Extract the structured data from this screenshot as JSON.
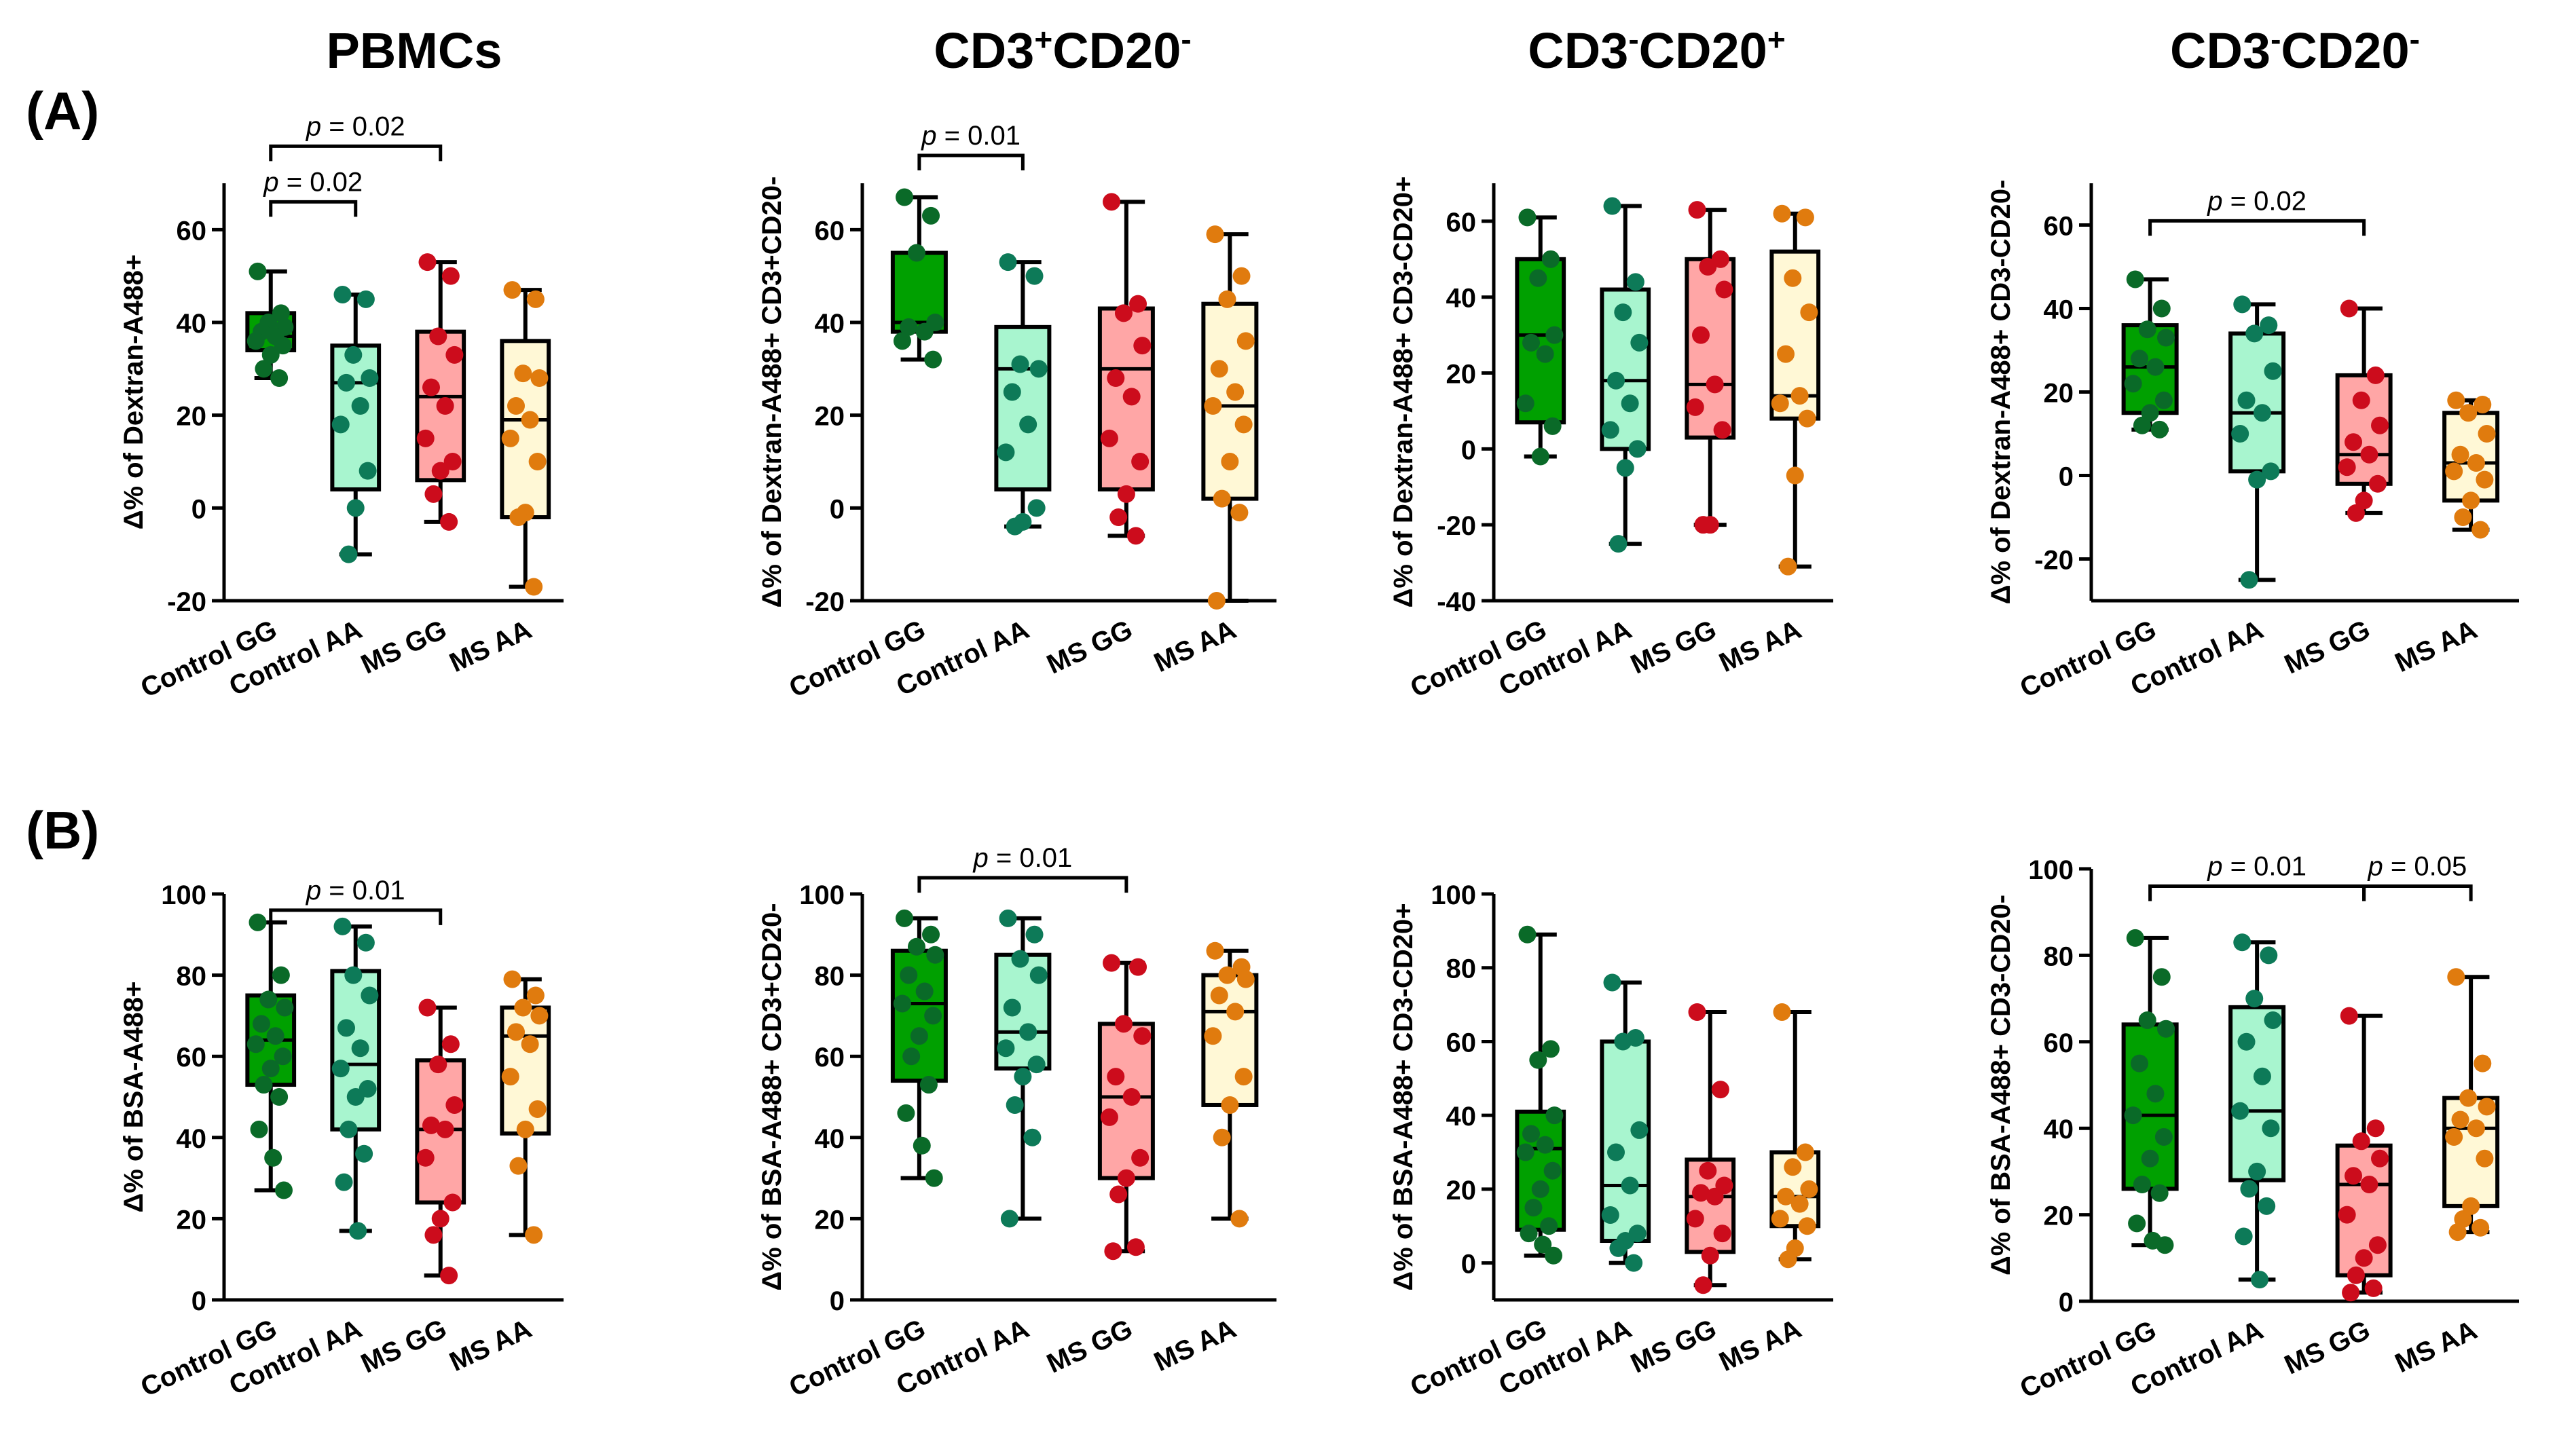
{
  "figure": {
    "row_labels": [
      "(A)",
      "(B)"
    ],
    "column_titles": [
      {
        "base": "PBMCs",
        "parts": [
          [
            "PBMCs",
            ""
          ]
        ]
      },
      {
        "base": "CD3+CD20-",
        "parts": [
          [
            "CD3",
            "sup"
          ],
          [
            "+",
            "sup-mark"
          ],
          [
            "CD20",
            ""
          ],
          [
            "-",
            "sup-mark"
          ]
        ]
      },
      {
        "base": "CD3-CD20+",
        "parts": [
          [
            "CD3",
            ""
          ],
          [
            "-",
            "sup-mark"
          ],
          [
            "CD20",
            ""
          ],
          [
            "+",
            "sup-mark"
          ]
        ]
      },
      {
        "base": "CD3-CD20-",
        "parts": [
          [
            "CD3",
            ""
          ],
          [
            "-",
            "sup-mark"
          ],
          [
            "CD20",
            ""
          ],
          [
            "-",
            "sup-mark"
          ]
        ]
      }
    ],
    "p_prefix": "p",
    "colors": {
      "Control GG": {
        "fill": "#00a000",
        "dot": "#0a6a28"
      },
      "Control AA": {
        "fill": "#a8f5cf",
        "dot": "#0d7a58"
      },
      "MS GG": {
        "fill": "#ffa6a6",
        "dot": "#cc0c1c"
      },
      "MS AA": {
        "fill": "#fff8d6",
        "dot": "#e07b0e"
      }
    }
  },
  "chart_data": [
    {
      "type": "box",
      "panel": "A1",
      "title": "PBMCs",
      "ylabel": "Δ% of Dextran-A488+",
      "ylim": [
        -20,
        70
      ],
      "yticks": [
        -20,
        0,
        20,
        40,
        60
      ],
      "categories": [
        "Control GG",
        "Control AA",
        "MS GG",
        "MS  AA"
      ],
      "groups": [
        {
          "min": 28,
          "q1": 34,
          "median": 37,
          "q3": 42,
          "max": 51,
          "points": [
            51,
            42,
            40,
            39,
            38,
            37,
            36,
            35,
            33,
            30,
            28
          ]
        },
        {
          "min": -10,
          "q1": 4,
          "median": 27,
          "q3": 35,
          "max": 46,
          "points": [
            46,
            45,
            33,
            28,
            27,
            22,
            18,
            8,
            0,
            -10
          ]
        },
        {
          "min": -3,
          "q1": 6,
          "median": 24,
          "q3": 38,
          "max": 53,
          "points": [
            53,
            50,
            37,
            33,
            26,
            22,
            15,
            10,
            8,
            3,
            -3
          ]
        },
        {
          "min": -17,
          "q1": -2,
          "median": 19,
          "q3": 36,
          "max": 47,
          "points": [
            47,
            45,
            29,
            28,
            22,
            19,
            15,
            10,
            -1,
            -2,
            -17
          ]
        }
      ],
      "comparisons": [
        {
          "from": 0,
          "to": 1,
          "label": "p = 0.02",
          "y": 66
        },
        {
          "from": 0,
          "to": 2,
          "label": "p = 0.02",
          "y": 78
        }
      ]
    },
    {
      "type": "box",
      "panel": "A2",
      "title": "CD3+CD20-",
      "ylabel": "Δ% of Dextran-A488+ CD3+CD20-",
      "ylim": [
        -20,
        70
      ],
      "yticks": [
        -20,
        0,
        20,
        40,
        60
      ],
      "categories": [
        "Control GG",
        "Control AA",
        "MS GG",
        "MS  AA"
      ],
      "groups": [
        {
          "min": 32,
          "q1": 38,
          "median": 40,
          "q3": 55,
          "max": 67,
          "points": [
            67,
            63,
            55,
            40,
            39,
            38,
            36,
            32
          ]
        },
        {
          "min": -4,
          "q1": 4,
          "median": 30,
          "q3": 39,
          "max": 53,
          "points": [
            53,
            50,
            31,
            30,
            25,
            18,
            12,
            0,
            -3,
            -4
          ]
        },
        {
          "min": -6,
          "q1": 4,
          "median": 30,
          "q3": 43,
          "max": 66,
          "points": [
            66,
            44,
            42,
            35,
            28,
            24,
            15,
            10,
            3,
            -2,
            -6
          ]
        },
        {
          "min": -20,
          "q1": 2,
          "median": 22,
          "q3": 44,
          "max": 59,
          "points": [
            59,
            50,
            45,
            36,
            30,
            25,
            22,
            18,
            10,
            2,
            -1,
            -20
          ]
        }
      ],
      "comparisons": [
        {
          "from": 0,
          "to": 1,
          "label": "p = 0.01",
          "y": 76
        }
      ]
    },
    {
      "type": "box",
      "panel": "A3",
      "title": "CD3-CD20+",
      "ylabel": "Δ% of Dextran-A488+ CD3-CD20+",
      "ylim": [
        -40,
        70
      ],
      "yticks": [
        -40,
        -20,
        0,
        20,
        40,
        60
      ],
      "categories": [
        "Control GG",
        "Control AA",
        "MS GG",
        "MS  AA"
      ],
      "groups": [
        {
          "min": -2,
          "q1": 7,
          "median": 30,
          "q3": 50,
          "max": 61,
          "points": [
            61,
            50,
            45,
            30,
            28,
            25,
            12,
            6,
            -2
          ]
        },
        {
          "min": -25,
          "q1": 0,
          "median": 18,
          "q3": 42,
          "max": 64,
          "points": [
            64,
            44,
            36,
            28,
            18,
            12,
            5,
            0,
            -5,
            -25
          ]
        },
        {
          "min": -20,
          "q1": 3,
          "median": 17,
          "q3": 50,
          "max": 63,
          "points": [
            63,
            50,
            48,
            42,
            30,
            17,
            11,
            5,
            -20,
            -20
          ]
        },
        {
          "min": -31,
          "q1": 8,
          "median": 14,
          "q3": 52,
          "max": 62,
          "points": [
            62,
            61,
            45,
            36,
            25,
            14,
            12,
            8,
            -7,
            -31
          ]
        }
      ],
      "comparisons": []
    },
    {
      "type": "box",
      "panel": "A4",
      "title": "CD3-CD20-",
      "ylabel": "Δ% of Dextran-A488+ CD3-CD20-",
      "ylim": [
        -30,
        70
      ],
      "yticks": [
        -20,
        0,
        20,
        40,
        60
      ],
      "categories": [
        "Control GG",
        "Control AA",
        "MS GG",
        "MS  AA"
      ],
      "groups": [
        {
          "min": 11,
          "q1": 15,
          "median": 26,
          "q3": 36,
          "max": 47,
          "points": [
            47,
            40,
            35,
            33,
            28,
            26,
            22,
            18,
            15,
            12,
            11
          ]
        },
        {
          "min": -25,
          "q1": 1,
          "median": 15,
          "q3": 34,
          "max": 41,
          "points": [
            41,
            36,
            34,
            25,
            18,
            15,
            10,
            1,
            -1,
            -25
          ]
        },
        {
          "min": -9,
          "q1": -2,
          "median": 5,
          "q3": 24,
          "max": 40,
          "points": [
            40,
            24,
            18,
            12,
            8,
            5,
            2,
            -2,
            -6,
            -9
          ]
        },
        {
          "min": -13,
          "q1": -6,
          "median": 3,
          "q3": 15,
          "max": 18,
          "points": [
            18,
            17,
            15,
            10,
            5,
            3,
            1,
            -1,
            -6,
            -10,
            -13
          ]
        }
      ],
      "comparisons": [
        {
          "from": 0,
          "to": 2,
          "label": "p = 0.02",
          "y": 61
        }
      ]
    },
    {
      "type": "box",
      "panel": "B1",
      "title": "",
      "ylabel": "Δ% of BSA-A488+",
      "ylim": [
        0,
        100
      ],
      "yticks": [
        0,
        20,
        40,
        60,
        80,
        100
      ],
      "categories": [
        "Control GG",
        "Control AA",
        "MS GG",
        "MS AA"
      ],
      "groups": [
        {
          "min": 27,
          "q1": 53,
          "median": 64,
          "q3": 75,
          "max": 93,
          "points": [
            93,
            80,
            74,
            72,
            68,
            65,
            63,
            60,
            57,
            53,
            50,
            42,
            35,
            27
          ]
        },
        {
          "min": 17,
          "q1": 42,
          "median": 58,
          "q3": 81,
          "max": 92,
          "points": [
            92,
            88,
            80,
            75,
            67,
            62,
            57,
            52,
            50,
            42,
            36,
            29,
            17
          ]
        },
        {
          "min": 6,
          "q1": 24,
          "median": 42,
          "q3": 59,
          "max": 72,
          "points": [
            72,
            63,
            58,
            48,
            43,
            42,
            35,
            24,
            20,
            16,
            6
          ]
        },
        {
          "min": 16,
          "q1": 41,
          "median": 65,
          "q3": 72,
          "max": 79,
          "points": [
            79,
            75,
            72,
            70,
            66,
            63,
            55,
            47,
            42,
            33,
            16
          ]
        }
      ],
      "comparisons": [
        {
          "from": 0,
          "to": 2,
          "label": "p = 0.01",
          "y": 96
        }
      ]
    },
    {
      "type": "box",
      "panel": "B2",
      "title": "",
      "ylabel": "Δ% of BSA-A488+ CD3+CD20-",
      "ylim": [
        0,
        100
      ],
      "yticks": [
        0,
        20,
        40,
        60,
        80,
        100
      ],
      "categories": [
        "Control GG",
        "Control AA",
        "MS GG",
        "MS AA"
      ],
      "groups": [
        {
          "min": 30,
          "q1": 54,
          "median": 73,
          "q3": 86,
          "max": 94,
          "points": [
            94,
            90,
            87,
            85,
            80,
            76,
            73,
            70,
            65,
            60,
            53,
            46,
            38,
            30
          ]
        },
        {
          "min": 20,
          "q1": 57,
          "median": 66,
          "q3": 85,
          "max": 94,
          "points": [
            94,
            90,
            84,
            80,
            72,
            66,
            62,
            58,
            55,
            48,
            40,
            20
          ]
        },
        {
          "min": 12,
          "q1": 30,
          "median": 50,
          "q3": 68,
          "max": 83,
          "points": [
            83,
            82,
            68,
            65,
            55,
            50,
            45,
            35,
            30,
            26,
            13,
            12
          ]
        },
        {
          "min": 20,
          "q1": 48,
          "median": 71,
          "q3": 80,
          "max": 86,
          "points": [
            86,
            82,
            80,
            79,
            75,
            71,
            65,
            55,
            48,
            40,
            20
          ]
        }
      ],
      "comparisons": [
        {
          "from": 0,
          "to": 2,
          "label": "p = 0.01",
          "y": 104
        }
      ]
    },
    {
      "type": "box",
      "panel": "B3",
      "title": "",
      "ylabel": "Δ% of BSA-A488+ CD3-CD20+",
      "ylim": [
        -10,
        100
      ],
      "yticks": [
        0,
        20,
        40,
        60,
        80,
        100
      ],
      "categories": [
        "Control GG",
        "Control AA",
        "MS GG",
        "MS AA"
      ],
      "groups": [
        {
          "min": 2,
          "q1": 9,
          "median": 31,
          "q3": 41,
          "max": 89,
          "points": [
            89,
            58,
            55,
            40,
            35,
            32,
            30,
            25,
            20,
            15,
            10,
            8,
            5,
            2
          ]
        },
        {
          "min": 0,
          "q1": 6,
          "median": 21,
          "q3": 60,
          "max": 76,
          "points": [
            76,
            61,
            60,
            36,
            30,
            21,
            13,
            8,
            6,
            4,
            0
          ]
        },
        {
          "min": -6,
          "q1": 3,
          "median": 18,
          "q3": 28,
          "max": 68,
          "points": [
            68,
            47,
            25,
            21,
            19,
            18,
            12,
            8,
            2,
            -6
          ]
        },
        {
          "min": 1,
          "q1": 10,
          "median": 18,
          "q3": 30,
          "max": 68,
          "points": [
            68,
            30,
            26,
            20,
            18,
            16,
            12,
            10,
            4,
            1
          ]
        }
      ],
      "comparisons": []
    },
    {
      "type": "box",
      "panel": "B4",
      "title": "",
      "ylabel": "Δ% of BSA-A488+ CD3-CD20-",
      "ylim": [
        0,
        100
      ],
      "yticks": [
        0,
        20,
        40,
        60,
        80,
        100
      ],
      "categories": [
        "Control GG",
        "Control AA",
        "MS GG",
        "MS AA"
      ],
      "groups": [
        {
          "min": 13,
          "q1": 26,
          "median": 43,
          "q3": 64,
          "max": 84,
          "points": [
            84,
            75,
            65,
            63,
            55,
            48,
            43,
            38,
            33,
            27,
            25,
            18,
            14,
            13
          ]
        },
        {
          "min": 5,
          "q1": 28,
          "median": 44,
          "q3": 68,
          "max": 83,
          "points": [
            83,
            80,
            70,
            65,
            60,
            52,
            44,
            40,
            30,
            26,
            22,
            15,
            5
          ]
        },
        {
          "min": 2,
          "q1": 6,
          "median": 27,
          "q3": 36,
          "max": 66,
          "points": [
            66,
            40,
            37,
            33,
            29,
            27,
            20,
            13,
            10,
            6,
            3,
            2
          ]
        },
        {
          "min": 16,
          "q1": 22,
          "median": 40,
          "q3": 47,
          "max": 75,
          "points": [
            75,
            55,
            47,
            45,
            42,
            40,
            38,
            33,
            22,
            19,
            17,
            16
          ]
        }
      ],
      "comparisons": [
        {
          "from": 0,
          "to": 2,
          "label": "p = 0.01",
          "y": 96
        },
        {
          "from": 2,
          "to": 3,
          "label": "p = 0.05",
          "y": 96
        }
      ]
    }
  ]
}
